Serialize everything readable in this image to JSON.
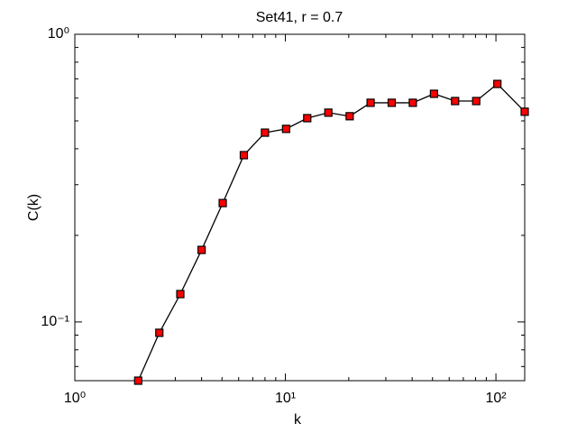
{
  "chart_data": {
    "type": "line",
    "title": "Set41, r = 0.7",
    "x_label": "k",
    "y_label": "C(k)",
    "x": [
      2,
      2.52,
      3.17,
      4,
      5.04,
      6.35,
      8,
      10.08,
      12.7,
      16,
      20.2,
      25.4,
      32,
      40.3,
      50.8,
      64,
      80.6,
      101.6,
      137
    ],
    "series": [
      {
        "color": "#ff0000",
        "values": [
          0.0625,
          0.0917,
          0.125,
          0.178,
          0.259,
          0.38,
          0.455,
          0.469,
          0.511,
          0.534,
          0.519,
          0.578,
          0.578,
          0.578,
          0.621,
          0.586,
          0.586,
          0.672,
          0.538
        ]
      }
    ],
    "xlim": [
      1,
      137
    ],
    "ylim": [
      0.0625,
      1
    ],
    "xticks": [
      {
        "value": 1,
        "label": "10⁰"
      },
      {
        "value": 10,
        "label": "10¹"
      },
      {
        "value": 100,
        "label": "10²"
      }
    ],
    "yticks": [
      {
        "value": 0.1,
        "label": "10⁻¹"
      },
      {
        "value": 1,
        "label": "10⁰"
      }
    ],
    "xscale": "log",
    "yscale": "log",
    "minor_ticks": true,
    "grid": false
  }
}
